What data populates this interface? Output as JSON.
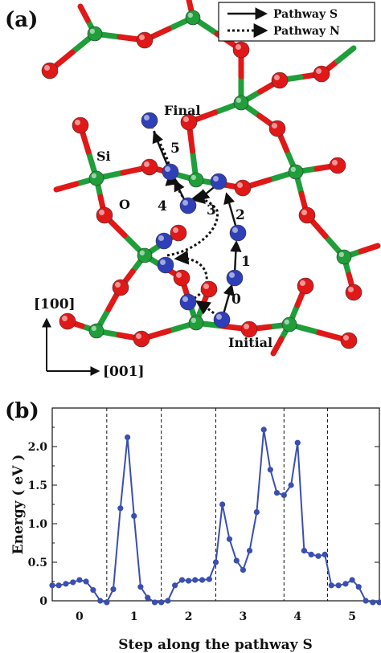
{
  "panel_a": {
    "label": "(a)",
    "legend": [
      "Pathway S",
      "Pathway N"
    ],
    "atom_labels": {
      "si": "Si",
      "o": "O"
    },
    "state_labels": {
      "final": "Final",
      "initial": "Initial"
    },
    "step_numbers": [
      "0",
      "1",
      "2",
      "3",
      "4",
      "5"
    ],
    "axes": {
      "vertical": "[100]",
      "horizontal": "[001]"
    },
    "colors": {
      "silicon": "#1f9e3a",
      "oxygen": "#e01818",
      "diffusing": "#2f3fb8",
      "bond_si": "#1f9e3a",
      "bond_o": "#e01818"
    }
  },
  "panel_b": {
    "label": "(b)",
    "chart_data": {
      "type": "line",
      "xlabel": "Step along the pathway S",
      "ylabel": "Energy ( eV )",
      "ylim": [
        0,
        2.5
      ],
      "xlim": [
        -0.5,
        5.5
      ],
      "yticks": [
        "0",
        "0.5",
        "1.0",
        "1.5",
        "2.0"
      ],
      "ytick_values": [
        0,
        0.5,
        1.0,
        1.5,
        2.0
      ],
      "xticks": [
        "0",
        "1",
        "2",
        "3",
        "4",
        "5"
      ],
      "xtick_values": [
        0,
        1,
        2,
        3,
        4,
        5
      ],
      "step_boundaries": [
        0.5,
        1.5,
        2.5,
        3.75,
        4.55
      ],
      "series": [
        {
          "color": "#3a4fb0",
          "x": [
            -0.5,
            -0.38,
            -0.25,
            -0.12,
            0.0,
            0.12,
            0.25,
            0.38,
            0.5,
            0.62,
            0.75,
            0.88,
            1.0,
            1.12,
            1.25,
            1.38,
            1.5,
            1.62,
            1.75,
            1.88,
            2.0,
            2.12,
            2.25,
            2.38,
            2.5,
            2.62,
            2.75,
            2.88,
            3.0,
            3.12,
            3.25,
            3.38,
            3.5,
            3.62,
            3.75,
            3.88,
            4.0,
            4.12,
            4.25,
            4.38,
            4.5,
            4.62,
            4.75,
            4.88,
            5.0,
            5.12,
            5.25,
            5.38,
            5.5
          ],
          "y": [
            0.2,
            0.2,
            0.22,
            0.24,
            0.27,
            0.25,
            0.14,
            0.0,
            -0.02,
            0.15,
            1.2,
            2.12,
            1.1,
            0.18,
            0.04,
            -0.02,
            -0.02,
            0.0,
            0.2,
            0.27,
            0.26,
            0.27,
            0.27,
            0.28,
            0.5,
            1.25,
            0.8,
            0.52,
            0.4,
            0.65,
            1.15,
            2.22,
            1.7,
            1.4,
            1.37,
            1.5,
            2.05,
            0.65,
            0.6,
            0.58,
            0.6,
            0.2,
            0.2,
            0.22,
            0.27,
            0.18,
            0.0,
            -0.02,
            -0.02
          ]
        }
      ]
    }
  }
}
